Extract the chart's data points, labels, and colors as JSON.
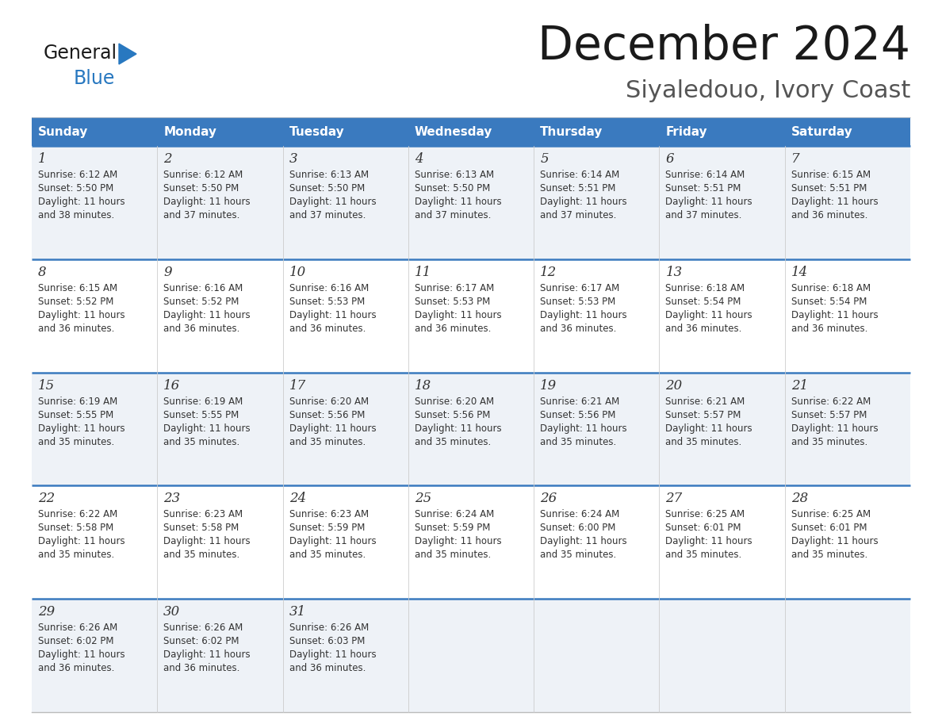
{
  "title": "December 2024",
  "subtitle": "Siyaledouo, Ivory Coast",
  "header_bg_color": "#3a7abf",
  "header_text_color": "#ffffff",
  "row_bg_even": "#eef2f7",
  "row_bg_odd": "#ffffff",
  "day_headers": [
    "Sunday",
    "Monday",
    "Tuesday",
    "Wednesday",
    "Thursday",
    "Friday",
    "Saturday"
  ],
  "title_color": "#1a1a1a",
  "subtitle_color": "#555555",
  "cell_text_color": "#333333",
  "cell_day_color": "#333333",
  "divider_color": "#3a7abf",
  "logo_general_color": "#1a1a1a",
  "logo_blue_color": "#2878c0",
  "logo_triangle_color": "#2878c0",
  "calendar_data": [
    [
      {
        "day": 1,
        "sunrise": "6:12 AM",
        "sunset": "5:50 PM",
        "daylight": "11 hours and 38 minutes"
      },
      {
        "day": 2,
        "sunrise": "6:12 AM",
        "sunset": "5:50 PM",
        "daylight": "11 hours and 37 minutes"
      },
      {
        "day": 3,
        "sunrise": "6:13 AM",
        "sunset": "5:50 PM",
        "daylight": "11 hours and 37 minutes"
      },
      {
        "day": 4,
        "sunrise": "6:13 AM",
        "sunset": "5:50 PM",
        "daylight": "11 hours and 37 minutes"
      },
      {
        "day": 5,
        "sunrise": "6:14 AM",
        "sunset": "5:51 PM",
        "daylight": "11 hours and 37 minutes"
      },
      {
        "day": 6,
        "sunrise": "6:14 AM",
        "sunset": "5:51 PM",
        "daylight": "11 hours and 37 minutes"
      },
      {
        "day": 7,
        "sunrise": "6:15 AM",
        "sunset": "5:51 PM",
        "daylight": "11 hours and 36 minutes"
      }
    ],
    [
      {
        "day": 8,
        "sunrise": "6:15 AM",
        "sunset": "5:52 PM",
        "daylight": "11 hours and 36 minutes"
      },
      {
        "day": 9,
        "sunrise": "6:16 AM",
        "sunset": "5:52 PM",
        "daylight": "11 hours and 36 minutes"
      },
      {
        "day": 10,
        "sunrise": "6:16 AM",
        "sunset": "5:53 PM",
        "daylight": "11 hours and 36 minutes"
      },
      {
        "day": 11,
        "sunrise": "6:17 AM",
        "sunset": "5:53 PM",
        "daylight": "11 hours and 36 minutes"
      },
      {
        "day": 12,
        "sunrise": "6:17 AM",
        "sunset": "5:53 PM",
        "daylight": "11 hours and 36 minutes"
      },
      {
        "day": 13,
        "sunrise": "6:18 AM",
        "sunset": "5:54 PM",
        "daylight": "11 hours and 36 minutes"
      },
      {
        "day": 14,
        "sunrise": "6:18 AM",
        "sunset": "5:54 PM",
        "daylight": "11 hours and 36 minutes"
      }
    ],
    [
      {
        "day": 15,
        "sunrise": "6:19 AM",
        "sunset": "5:55 PM",
        "daylight": "11 hours and 35 minutes"
      },
      {
        "day": 16,
        "sunrise": "6:19 AM",
        "sunset": "5:55 PM",
        "daylight": "11 hours and 35 minutes"
      },
      {
        "day": 17,
        "sunrise": "6:20 AM",
        "sunset": "5:56 PM",
        "daylight": "11 hours and 35 minutes"
      },
      {
        "day": 18,
        "sunrise": "6:20 AM",
        "sunset": "5:56 PM",
        "daylight": "11 hours and 35 minutes"
      },
      {
        "day": 19,
        "sunrise": "6:21 AM",
        "sunset": "5:56 PM",
        "daylight": "11 hours and 35 minutes"
      },
      {
        "day": 20,
        "sunrise": "6:21 AM",
        "sunset": "5:57 PM",
        "daylight": "11 hours and 35 minutes"
      },
      {
        "day": 21,
        "sunrise": "6:22 AM",
        "sunset": "5:57 PM",
        "daylight": "11 hours and 35 minutes"
      }
    ],
    [
      {
        "day": 22,
        "sunrise": "6:22 AM",
        "sunset": "5:58 PM",
        "daylight": "11 hours and 35 minutes"
      },
      {
        "day": 23,
        "sunrise": "6:23 AM",
        "sunset": "5:58 PM",
        "daylight": "11 hours and 35 minutes"
      },
      {
        "day": 24,
        "sunrise": "6:23 AM",
        "sunset": "5:59 PM",
        "daylight": "11 hours and 35 minutes"
      },
      {
        "day": 25,
        "sunrise": "6:24 AM",
        "sunset": "5:59 PM",
        "daylight": "11 hours and 35 minutes"
      },
      {
        "day": 26,
        "sunrise": "6:24 AM",
        "sunset": "6:00 PM",
        "daylight": "11 hours and 35 minutes"
      },
      {
        "day": 27,
        "sunrise": "6:25 AM",
        "sunset": "6:01 PM",
        "daylight": "11 hours and 35 minutes"
      },
      {
        "day": 28,
        "sunrise": "6:25 AM",
        "sunset": "6:01 PM",
        "daylight": "11 hours and 35 minutes"
      }
    ],
    [
      {
        "day": 29,
        "sunrise": "6:26 AM",
        "sunset": "6:02 PM",
        "daylight": "11 hours and 36 minutes"
      },
      {
        "day": 30,
        "sunrise": "6:26 AM",
        "sunset": "6:02 PM",
        "daylight": "11 hours and 36 minutes"
      },
      {
        "day": 31,
        "sunrise": "6:26 AM",
        "sunset": "6:03 PM",
        "daylight": "11 hours and 36 minutes"
      },
      null,
      null,
      null,
      null
    ]
  ]
}
